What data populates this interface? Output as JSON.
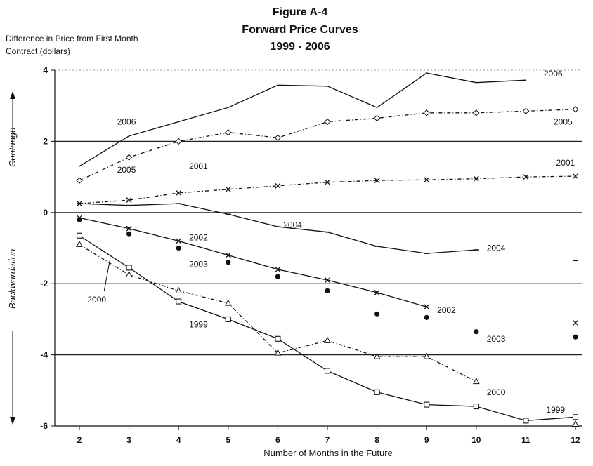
{
  "chart_data": {
    "type": "line",
    "title_lines": [
      "Figure A-4",
      "Forward Price Curves",
      "1999 - 2006"
    ],
    "ylabel_lines": [
      "Difference in Price from First Month",
      "Contract (dollars)"
    ],
    "xlabel": "Number of Months in the Future",
    "side_labels": {
      "upper": "Contango",
      "lower": "Backwardation"
    },
    "x_ticks": [
      2,
      3,
      4,
      5,
      6,
      7,
      8,
      9,
      10,
      11,
      12
    ],
    "y_ticks": [
      4,
      2,
      0,
      -2,
      -4,
      -6
    ],
    "xlim": [
      2,
      12
    ],
    "ylim": [
      -6.0,
      4.0
    ],
    "horizontal_gridlines": [
      2,
      0,
      -2,
      -4
    ],
    "series": [
      {
        "name": "2006",
        "style": "solid",
        "marker": "none",
        "x": [
          2,
          3,
          4,
          5,
          6,
          7,
          8,
          9,
          10,
          11
        ],
        "y": [
          1.3,
          2.15,
          2.55,
          2.95,
          3.58,
          3.55,
          2.95,
          3.92,
          3.65,
          3.72
        ],
        "labels": [
          {
            "text": "2006",
            "x": 2.95,
            "y": 2.55
          },
          {
            "text": "2006",
            "x": 11.55,
            "y": 3.9
          }
        ]
      },
      {
        "name": "2005",
        "style": "dashdot",
        "marker": "diamond",
        "x": [
          2,
          3,
          4,
          5,
          6,
          7,
          8,
          9,
          10,
          11,
          12
        ],
        "y": [
          0.9,
          1.55,
          2.0,
          2.25,
          2.1,
          2.55,
          2.65,
          2.8,
          2.8,
          2.85,
          2.9
        ],
        "labels": [
          {
            "text": "2005",
            "x": 2.95,
            "y": 1.2
          },
          {
            "text": "2005",
            "x": 11.75,
            "y": 2.55
          }
        ]
      },
      {
        "name": "2001",
        "style": "dashdot",
        "marker": "x",
        "x": [
          2,
          3,
          4,
          5,
          6,
          7,
          8,
          9,
          10,
          11,
          12
        ],
        "y": [
          0.25,
          0.35,
          0.55,
          0.65,
          0.75,
          0.85,
          0.9,
          0.92,
          0.95,
          1.0,
          1.02
        ],
        "labels": [
          {
            "text": "2001",
            "x": 4.4,
            "y": 1.3
          },
          {
            "text": "2001",
            "x": 11.8,
            "y": 1.4
          }
        ]
      },
      {
        "name": "2004",
        "style": "solid",
        "marker": "dash",
        "x": [
          2,
          3,
          4,
          5,
          6,
          7,
          8,
          9,
          10,
          12
        ],
        "y": [
          0.25,
          0.2,
          0.25,
          -0.05,
          -0.4,
          -0.55,
          -0.95,
          -1.15,
          -1.05,
          -1.35
        ],
        "connected_points": 9,
        "labels": [
          {
            "text": "2004",
            "x": 6.3,
            "y": -0.35
          },
          {
            "text": "2004",
            "x": 10.4,
            "y": -1.0
          }
        ]
      },
      {
        "name": "2002",
        "style": "solid",
        "marker": "x",
        "x": [
          2,
          3,
          4,
          5,
          6,
          7,
          8,
          9,
          12
        ],
        "y": [
          -0.15,
          -0.45,
          -0.8,
          -1.2,
          -1.6,
          -1.9,
          -2.25,
          -2.65,
          -3.1
        ],
        "connected_points": 8,
        "labels": [
          {
            "text": "2002",
            "x": 4.4,
            "y": -0.7
          },
          {
            "text": "2002",
            "x": 9.4,
            "y": -2.75
          }
        ]
      },
      {
        "name": "2003",
        "style": "none",
        "marker": "dot",
        "x": [
          2,
          3,
          4,
          5,
          6,
          7,
          8,
          9,
          10,
          12
        ],
        "y": [
          -0.2,
          -0.6,
          -1.0,
          -1.4,
          -1.8,
          -2.2,
          -2.85,
          -2.95,
          -3.35,
          -3.5
        ],
        "labels": [
          {
            "text": "2003",
            "x": 4.4,
            "y": -1.45
          },
          {
            "text": "2003",
            "x": 10.4,
            "y": -3.55
          }
        ]
      },
      {
        "name": "2000",
        "style": "dashdot",
        "marker": "triangle",
        "x": [
          2,
          3,
          4,
          5,
          6,
          7,
          8,
          9,
          10,
          12
        ],
        "y": [
          -0.9,
          -1.75,
          -2.2,
          -2.55,
          -3.95,
          -3.6,
          -4.05,
          -4.05,
          -4.75,
          -5.95
        ],
        "connected_points": 9,
        "labels": [
          {
            "text": "2000",
            "x": 2.35,
            "y": -2.45
          },
          {
            "text": "2000",
            "x": 10.4,
            "y": -5.05
          }
        ]
      },
      {
        "name": "1999",
        "style": "solid",
        "marker": "square",
        "x": [
          2,
          3,
          4,
          5,
          6,
          7,
          8,
          9,
          10,
          11,
          12
        ],
        "y": [
          -0.65,
          -1.55,
          -2.5,
          -3.0,
          -3.55,
          -4.45,
          -5.05,
          -5.4,
          -5.45,
          -5.85,
          -5.75
        ],
        "labels": [
          {
            "text": "1999",
            "x": 4.4,
            "y": -3.15
          },
          {
            "text": "1999",
            "x": 11.6,
            "y": -5.55
          }
        ]
      }
    ]
  }
}
